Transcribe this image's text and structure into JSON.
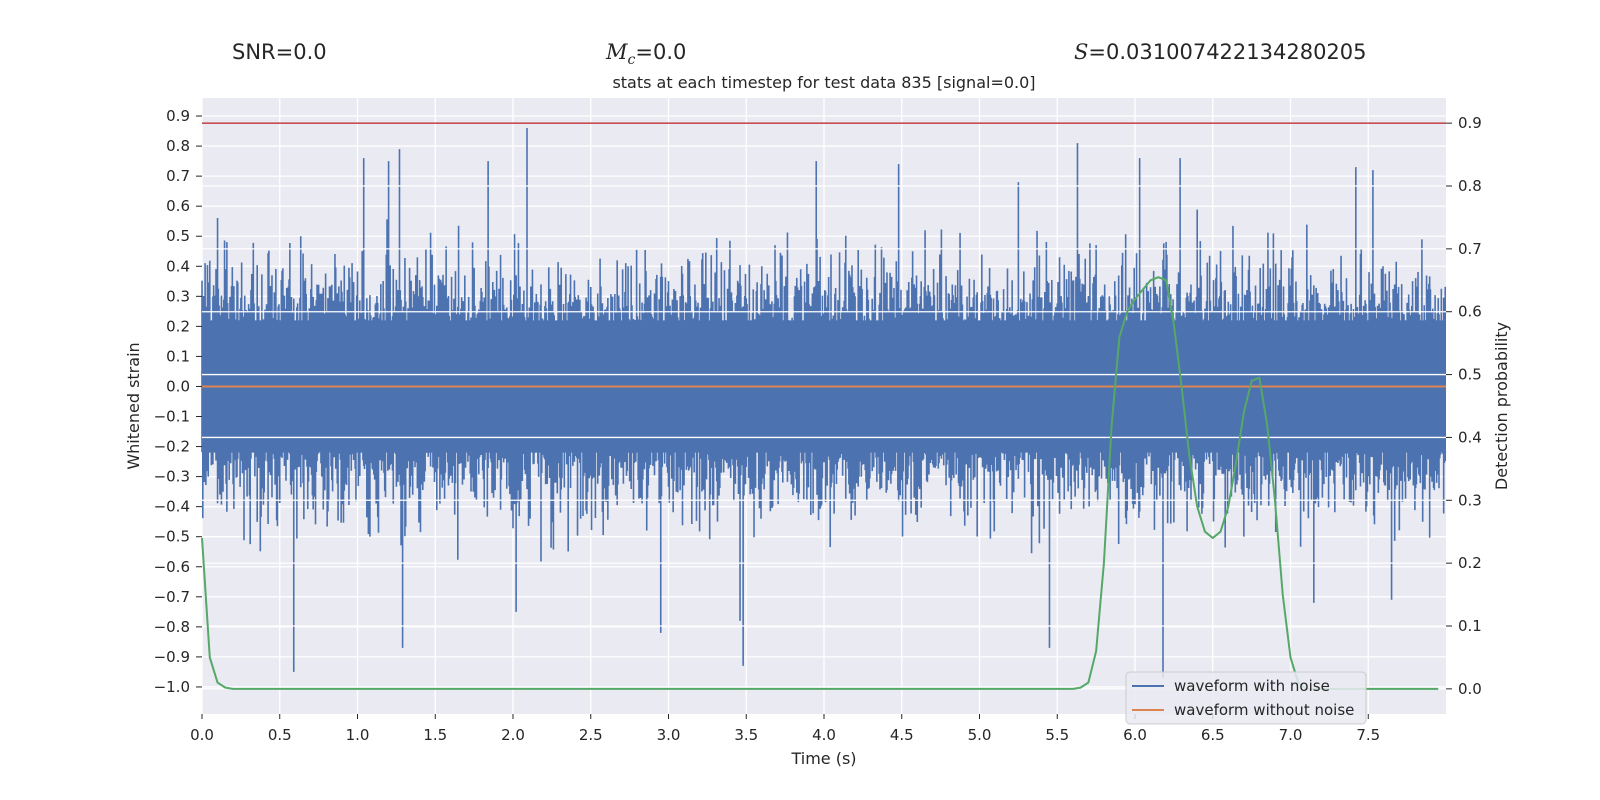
{
  "header": {
    "snr_label": "SNR",
    "snr_value": "=0.0",
    "mc_symbol": "M",
    "mc_sub": "c",
    "mc_value": "=0.0",
    "s_symbol": "S",
    "s_value": "=0.031007422134280205"
  },
  "colors": {
    "noise": "#4c72b0",
    "clean": "#dd8452",
    "probability": "#55a868",
    "threshold": "#c44e52",
    "background": "#eaeaf2"
  },
  "chart_data": {
    "type": "line",
    "title": "stats at each timestep for test data 835 [signal=0.0]",
    "xlabel": "Time (s)",
    "ylabel": "Whitened strain",
    "y2label": "Detection probability",
    "xlim": [
      0.0,
      8.0
    ],
    "ylim": [
      -1.09,
      0.96
    ],
    "y2lim": [
      -0.04,
      0.94
    ],
    "xticks": [
      "0.0",
      "0.5",
      "1.0",
      "1.5",
      "2.0",
      "2.5",
      "3.0",
      "3.5",
      "4.0",
      "4.5",
      "5.0",
      "5.5",
      "6.0",
      "6.5",
      "7.0",
      "7.5"
    ],
    "xtick_values": [
      0.0,
      0.5,
      1.0,
      1.5,
      2.0,
      2.5,
      3.0,
      3.5,
      4.0,
      4.5,
      5.0,
      5.5,
      6.0,
      6.5,
      7.0,
      7.5
    ],
    "yticks": [
      "0.9",
      "0.8",
      "0.7",
      "0.6",
      "0.5",
      "0.4",
      "0.3",
      "0.2",
      "0.1",
      "0.0",
      "−0.1",
      "−0.2",
      "−0.3",
      "−0.4",
      "−0.5",
      "−0.6",
      "−0.7",
      "−0.8",
      "−0.9",
      "−1.0"
    ],
    "ytick_values": [
      0.9,
      0.8,
      0.7,
      0.6,
      0.5,
      0.4,
      0.3,
      0.2,
      0.1,
      0.0,
      -0.1,
      -0.2,
      -0.3,
      -0.4,
      -0.5,
      -0.6,
      -0.7,
      -0.8,
      -0.9,
      -1.0
    ],
    "y2ticks": [
      "0.9",
      "0.8",
      "0.7",
      "0.6",
      "0.5",
      "0.4",
      "0.3",
      "0.2",
      "0.1",
      "0.0"
    ],
    "y2tick_values": [
      0.9,
      0.8,
      0.7,
      0.6,
      0.5,
      0.4,
      0.3,
      0.2,
      0.1,
      0.0
    ],
    "threshold": {
      "axis": "right",
      "value": 0.9
    },
    "series": [
      {
        "name": "waveform with noise",
        "axis": "left",
        "kind": "noise",
        "duration": 8.0,
        "samples": 1600,
        "core_amplitude": 0.3,
        "peaks": [
          {
            "t": 0.59,
            "v": -0.95
          },
          {
            "t": 1.04,
            "v": 0.76
          },
          {
            "t": 1.2,
            "v": 0.75
          },
          {
            "t": 1.27,
            "v": 0.79
          },
          {
            "t": 1.29,
            "v": -0.87
          },
          {
            "t": 1.84,
            "v": 0.75
          },
          {
            "t": 2.09,
            "v": 0.86
          },
          {
            "t": 2.02,
            "v": -0.75
          },
          {
            "t": 2.95,
            "v": -0.82
          },
          {
            "t": 3.46,
            "v": -0.78
          },
          {
            "t": 3.48,
            "v": -0.93
          },
          {
            "t": 3.95,
            "v": 0.75
          },
          {
            "t": 4.48,
            "v": 0.74
          },
          {
            "t": 5.25,
            "v": 0.68
          },
          {
            "t": 5.45,
            "v": -0.87
          },
          {
            "t": 5.63,
            "v": 0.81
          },
          {
            "t": 6.03,
            "v": 0.76
          },
          {
            "t": 6.18,
            "v": -0.97
          },
          {
            "t": 6.29,
            "v": 0.76
          },
          {
            "t": 7.42,
            "v": 0.73
          },
          {
            "t": 7.53,
            "v": 0.72
          },
          {
            "t": 7.15,
            "v": -0.72
          },
          {
            "t": 7.65,
            "v": -0.71
          }
        ]
      },
      {
        "name": "waveform without noise",
        "axis": "left",
        "x": [
          0.0,
          8.0
        ],
        "y": [
          0.0,
          0.0
        ]
      },
      {
        "name": "detection probability",
        "axis": "right",
        "x": [
          0.0,
          0.05,
          0.1,
          0.15,
          0.2,
          0.3,
          5.6,
          5.65,
          5.7,
          5.75,
          5.8,
          5.85,
          5.9,
          5.95,
          6.0,
          6.1,
          6.15,
          6.2,
          6.25,
          6.3,
          6.35,
          6.4,
          6.45,
          6.5,
          6.55,
          6.6,
          6.65,
          6.7,
          6.75,
          6.8,
          6.85,
          6.9,
          6.95,
          7.0,
          7.05,
          7.1,
          7.15,
          7.5,
          7.95
        ],
        "y": [
          0.24,
          0.05,
          0.01,
          0.002,
          0.0,
          0.0,
          0.0,
          0.002,
          0.01,
          0.06,
          0.2,
          0.42,
          0.56,
          0.6,
          0.62,
          0.65,
          0.655,
          0.65,
          0.58,
          0.48,
          0.37,
          0.29,
          0.25,
          0.24,
          0.25,
          0.29,
          0.36,
          0.44,
          0.49,
          0.495,
          0.42,
          0.3,
          0.15,
          0.05,
          0.01,
          0.0,
          0.0,
          0.0,
          0.0
        ]
      }
    ],
    "legend": {
      "position": "lower-right",
      "entries": [
        "waveform with noise",
        "waveform without noise"
      ]
    }
  }
}
